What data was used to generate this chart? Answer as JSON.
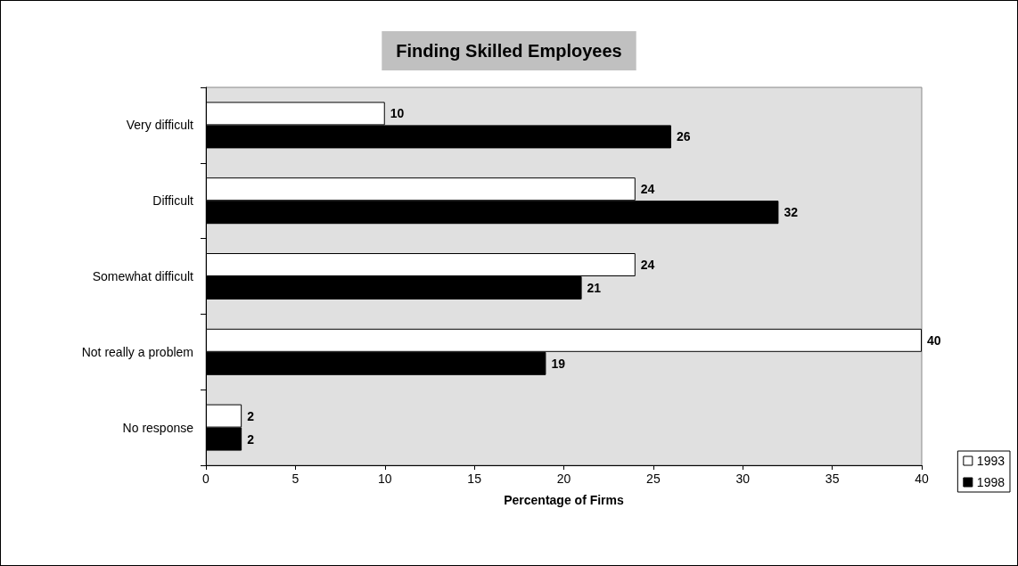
{
  "chart_data": {
    "type": "bar",
    "orientation": "horizontal",
    "title": "Finding Skilled Employees",
    "xlabel": "Percentage of Firms",
    "categories": [
      "Very difficult",
      "Difficult",
      "Somewhat difficult",
      "Not really a problem",
      "No response"
    ],
    "series": [
      {
        "name": "1993",
        "color": "#ffffff",
        "values": [
          10,
          24,
          24,
          40,
          2
        ]
      },
      {
        "name": "1998",
        "color": "#000000",
        "values": [
          26,
          32,
          21,
          19,
          2
        ]
      }
    ],
    "xlim": [
      0,
      40
    ],
    "xticks": [
      0,
      5,
      10,
      15,
      20,
      25,
      30,
      35,
      40
    ],
    "grid": false,
    "legend": "bottom right",
    "data_labels": true
  }
}
